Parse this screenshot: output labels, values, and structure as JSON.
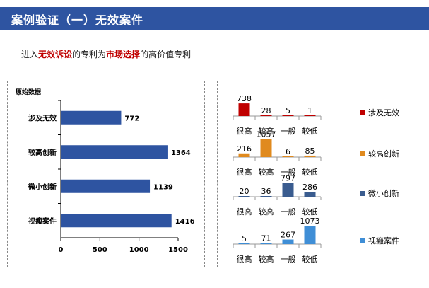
{
  "header": {
    "title": "案例验证（一）无效案件"
  },
  "subtitle": {
    "prefix": "进入",
    "highlight1": "无效诉讼",
    "mid": "的专利为",
    "highlight2": "市场选择",
    "suffix": "的高价值专利"
  },
  "colors": {
    "title_bar": "#2e54a1",
    "bar": "#2e54a1",
    "highlight": "#c00000"
  },
  "chart_data": [
    {
      "type": "bar",
      "orientation": "horizontal",
      "title": "原始数据",
      "categories": [
        "涉及无效",
        "较高创新",
        "微小创新",
        "视瘢案件"
      ],
      "values": [
        772,
        1364,
        1139,
        1416
      ],
      "xlim": [
        0,
        1500
      ],
      "xticks": [
        "0",
        "500",
        "1000",
        "1500"
      ],
      "grid": false
    },
    {
      "type": "bar",
      "title": "",
      "categories": [
        "很高",
        "较高",
        "一般",
        "较低"
      ],
      "series": [
        {
          "name": "涉及无效",
          "color": "#c00000",
          "values": [
            738,
            28,
            5,
            1
          ]
        },
        {
          "name": "较高创新",
          "color": "#e08a1e",
          "values": [
            216,
            1057,
            6,
            85
          ]
        },
        {
          "name": "微小创新",
          "color": "#3a5c8f",
          "values": [
            20,
            36,
            797,
            286
          ]
        },
        {
          "name": "视瘢案件",
          "color": "#3f8ed6",
          "values": [
            5,
            71,
            267,
            1073
          ]
        }
      ],
      "legend": "right"
    }
  ]
}
